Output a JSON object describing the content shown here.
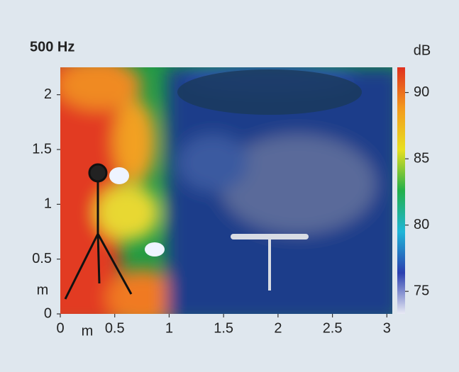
{
  "chart_data": {
    "type": "heatmap",
    "title": "500 Hz",
    "colorbar_label": "dB",
    "x_label": "m",
    "y_label": "m",
    "xlim": [
      0,
      3.05
    ],
    "xticks": [
      0,
      0.5,
      1,
      1.5,
      2,
      2.5,
      3
    ],
    "ylim": [
      0,
      2.25
    ],
    "yticks": [
      0,
      0.5,
      1,
      1.5,
      2
    ],
    "clim": [
      73.3,
      91.9
    ],
    "cticks": [
      75,
      80,
      85,
      90
    ],
    "colormap": [
      "#e8eaf4",
      "#2a3fb0",
      "#1fb6d8",
      "#22b04a",
      "#e8e020",
      "#f39a1e",
      "#e0301e"
    ]
  }
}
